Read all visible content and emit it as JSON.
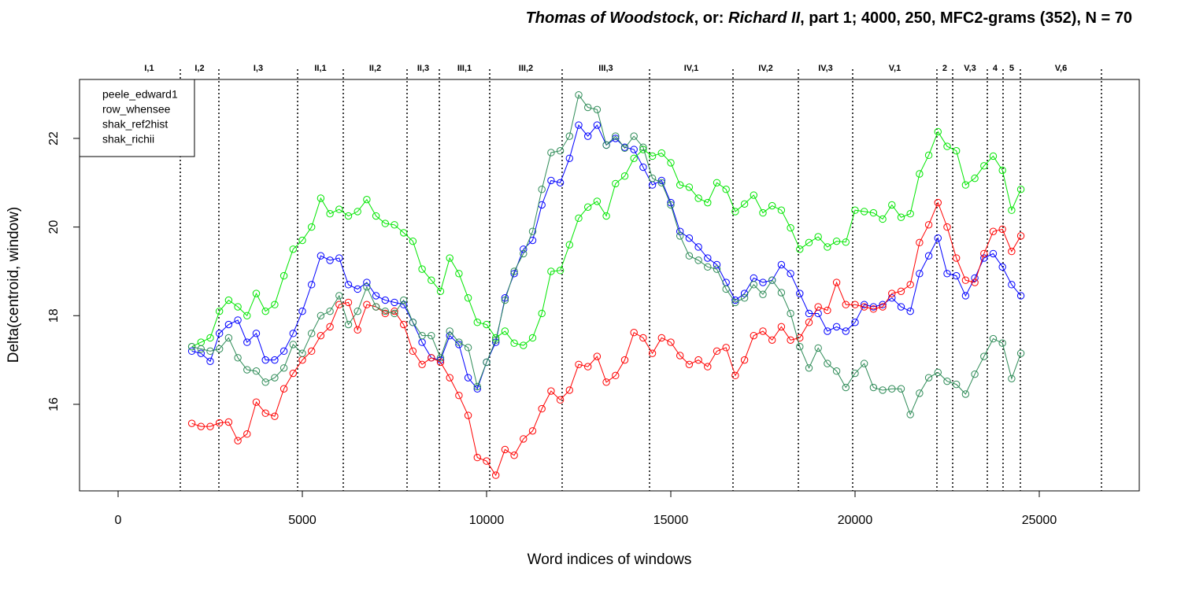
{
  "chart_data": {
    "type": "line",
    "title_parts": [
      {
        "text": "Thomas of Woodstock",
        "italic": true
      },
      {
        "text": ", or: ",
        "italic": false
      },
      {
        "text": "Richard II",
        "italic": true
      },
      {
        "text": ", part 1; 4000, 250, MFC2-grams (352), N = 70",
        "italic": false
      }
    ],
    "x_label": "Word indices of windows",
    "y_label": "Delta(centroid, window)",
    "xlim": [
      -1047,
      27714
    ],
    "ylim": [
      14.047,
      23.33
    ],
    "xticks": [
      0,
      5000,
      10000,
      15000,
      20000,
      25000
    ],
    "yticks": [
      16,
      18,
      20,
      22
    ],
    "marker": "circle",
    "legend": "top-left",
    "scene_breaks": [
      0,
      1688,
      2735,
      4872,
      6111,
      7842,
      8718,
      10085,
      12051,
      14423,
      16688,
      18462,
      19936,
      22222,
      22650,
      23590,
      24017,
      24487,
      26688
    ],
    "scene_labels": [
      "I,1",
      "I,2",
      "I,3",
      "II,1",
      "II,2",
      "II,3",
      "III,1",
      "III,2",
      "III,3",
      "IV,1",
      "IV,2",
      "IV,3",
      "V,1",
      "2",
      "V,3",
      "4",
      "5",
      "V,6"
    ],
    "x": [
      2000,
      2250,
      2500,
      2750,
      3000,
      3250,
      3500,
      3750,
      4000,
      4250,
      4500,
      4750,
      5000,
      5250,
      5500,
      5750,
      6000,
      6250,
      6500,
      6750,
      7000,
      7250,
      7500,
      7750,
      8000,
      8250,
      8500,
      8750,
      9000,
      9250,
      9500,
      9750,
      10000,
      10250,
      10500,
      10750,
      11000,
      11250,
      11500,
      11750,
      12000,
      12250,
      12500,
      12750,
      13000,
      13250,
      13500,
      13750,
      14000,
      14250,
      14500,
      14750,
      15000,
      15250,
      15500,
      15750,
      16000,
      16250,
      16500,
      16750,
      17000,
      17250,
      17500,
      17750,
      18000,
      18250,
      18500,
      18750,
      19000,
      19250,
      19500,
      19750,
      20000,
      20250,
      20500,
      20750,
      21000,
      21250,
      21500,
      21750,
      22000,
      22250,
      22500,
      22750,
      23000,
      23250,
      23500,
      23750,
      24000,
      24250,
      24500
    ],
    "series": [
      {
        "name": "peele_edward1",
        "color": "#0000ff",
        "values": [
          17.2,
          17.15,
          16.97,
          17.6,
          17.8,
          17.9,
          17.4,
          17.6,
          17.0,
          17.0,
          17.2,
          17.6,
          18.1,
          18.7,
          19.35,
          19.25,
          19.3,
          18.7,
          18.6,
          18.75,
          18.45,
          18.35,
          18.3,
          18.25,
          17.85,
          17.4,
          17.05,
          17.0,
          17.55,
          17.35,
          16.6,
          16.35,
          16.95,
          17.4,
          18.4,
          18.95,
          19.5,
          19.7,
          20.5,
          21.05,
          21.0,
          21.55,
          22.3,
          22.05,
          22.3,
          21.85,
          22.0,
          21.8,
          21.75,
          21.35,
          20.95,
          21.05,
          20.55,
          19.9,
          19.75,
          19.55,
          19.3,
          19.15,
          18.75,
          18.35,
          18.5,
          18.85,
          18.75,
          18.8,
          19.15,
          18.95,
          18.5,
          18.05,
          18.05,
          17.65,
          17.75,
          17.65,
          17.85,
          18.25,
          18.2,
          18.25,
          18.4,
          18.2,
          18.1,
          18.95,
          19.35,
          19.75,
          18.95,
          18.9,
          18.45,
          18.85,
          19.3,
          19.4,
          19.1,
          18.7,
          18.45
        ]
      },
      {
        "name": "row_whensee",
        "color": "#ff0000",
        "values": [
          15.57,
          15.5,
          15.5,
          15.58,
          15.6,
          15.18,
          15.33,
          16.05,
          15.8,
          15.73,
          16.35,
          16.7,
          17.0,
          17.2,
          17.55,
          17.75,
          18.25,
          18.3,
          17.68,
          18.25,
          18.2,
          18.05,
          18.1,
          17.8,
          17.2,
          16.9,
          17.05,
          16.95,
          16.6,
          16.2,
          15.75,
          14.8,
          14.72,
          14.4,
          14.98,
          14.85,
          15.22,
          15.4,
          15.9,
          16.3,
          16.1,
          16.32,
          16.9,
          16.85,
          17.08,
          16.5,
          16.65,
          17.0,
          17.62,
          17.5,
          17.15,
          17.5,
          17.4,
          17.1,
          16.9,
          17.0,
          16.85,
          17.2,
          17.28,
          16.65,
          17.0,
          17.55,
          17.65,
          17.45,
          17.75,
          17.45,
          17.5,
          17.85,
          18.2,
          18.12,
          18.75,
          18.25,
          18.25,
          18.2,
          18.15,
          18.2,
          18.5,
          18.55,
          18.7,
          19.65,
          20.05,
          20.55,
          20.0,
          19.3,
          18.8,
          18.75,
          19.4,
          19.9,
          19.95,
          19.45,
          19.8
        ]
      },
      {
        "name": "shak_ref2hist",
        "color": "#00e600",
        "values": [
          17.3,
          17.4,
          17.5,
          18.1,
          18.35,
          18.2,
          18.0,
          18.5,
          18.1,
          18.25,
          18.9,
          19.5,
          19.7,
          20.0,
          20.65,
          20.3,
          20.4,
          20.25,
          20.35,
          20.62,
          20.25,
          20.08,
          20.05,
          19.87,
          19.68,
          19.05,
          18.8,
          18.55,
          19.3,
          18.95,
          18.4,
          17.85,
          17.8,
          17.5,
          17.65,
          17.38,
          17.33,
          17.5,
          18.05,
          19.0,
          19.02,
          19.6,
          20.2,
          20.45,
          20.58,
          20.25,
          20.98,
          21.15,
          21.55,
          21.75,
          21.6,
          21.67,
          21.45,
          20.95,
          20.9,
          20.65,
          20.55,
          21.0,
          20.85,
          20.35,
          20.52,
          20.72,
          20.32,
          20.48,
          20.38,
          19.98,
          19.5,
          19.65,
          19.78,
          19.55,
          19.68,
          19.66,
          20.38,
          20.35,
          20.32,
          20.18,
          20.5,
          20.22,
          20.3,
          21.2,
          21.62,
          22.15,
          21.82,
          21.72,
          20.95,
          21.1,
          21.38,
          21.6,
          21.28,
          20.38,
          20.85
        ]
      },
      {
        "name": "shak_richii",
        "color": "#2e8b57",
        "values": [
          17.3,
          17.25,
          17.2,
          17.25,
          17.5,
          17.05,
          16.78,
          16.75,
          16.5,
          16.6,
          16.82,
          17.35,
          17.15,
          17.6,
          18.0,
          18.1,
          18.45,
          17.8,
          18.1,
          18.65,
          18.2,
          18.1,
          18.05,
          18.35,
          17.85,
          17.55,
          17.55,
          17.05,
          17.65,
          17.4,
          17.28,
          16.4,
          16.95,
          17.45,
          18.35,
          19.0,
          19.4,
          19.9,
          20.85,
          21.68,
          21.72,
          22.05,
          22.98,
          22.7,
          22.65,
          21.85,
          22.05,
          21.78,
          22.05,
          21.8,
          21.1,
          21.0,
          20.5,
          19.8,
          19.35,
          19.25,
          19.1,
          19.05,
          18.6,
          18.3,
          18.4,
          18.7,
          18.48,
          18.8,
          18.52,
          18.05,
          17.3,
          16.82,
          17.27,
          16.92,
          16.75,
          16.38,
          16.7,
          16.92,
          16.38,
          16.32,
          16.35,
          16.35,
          15.77,
          16.25,
          16.6,
          16.72,
          16.52,
          16.45,
          16.23,
          16.68,
          17.08,
          17.48,
          17.38,
          16.58,
          17.15
        ]
      }
    ]
  }
}
